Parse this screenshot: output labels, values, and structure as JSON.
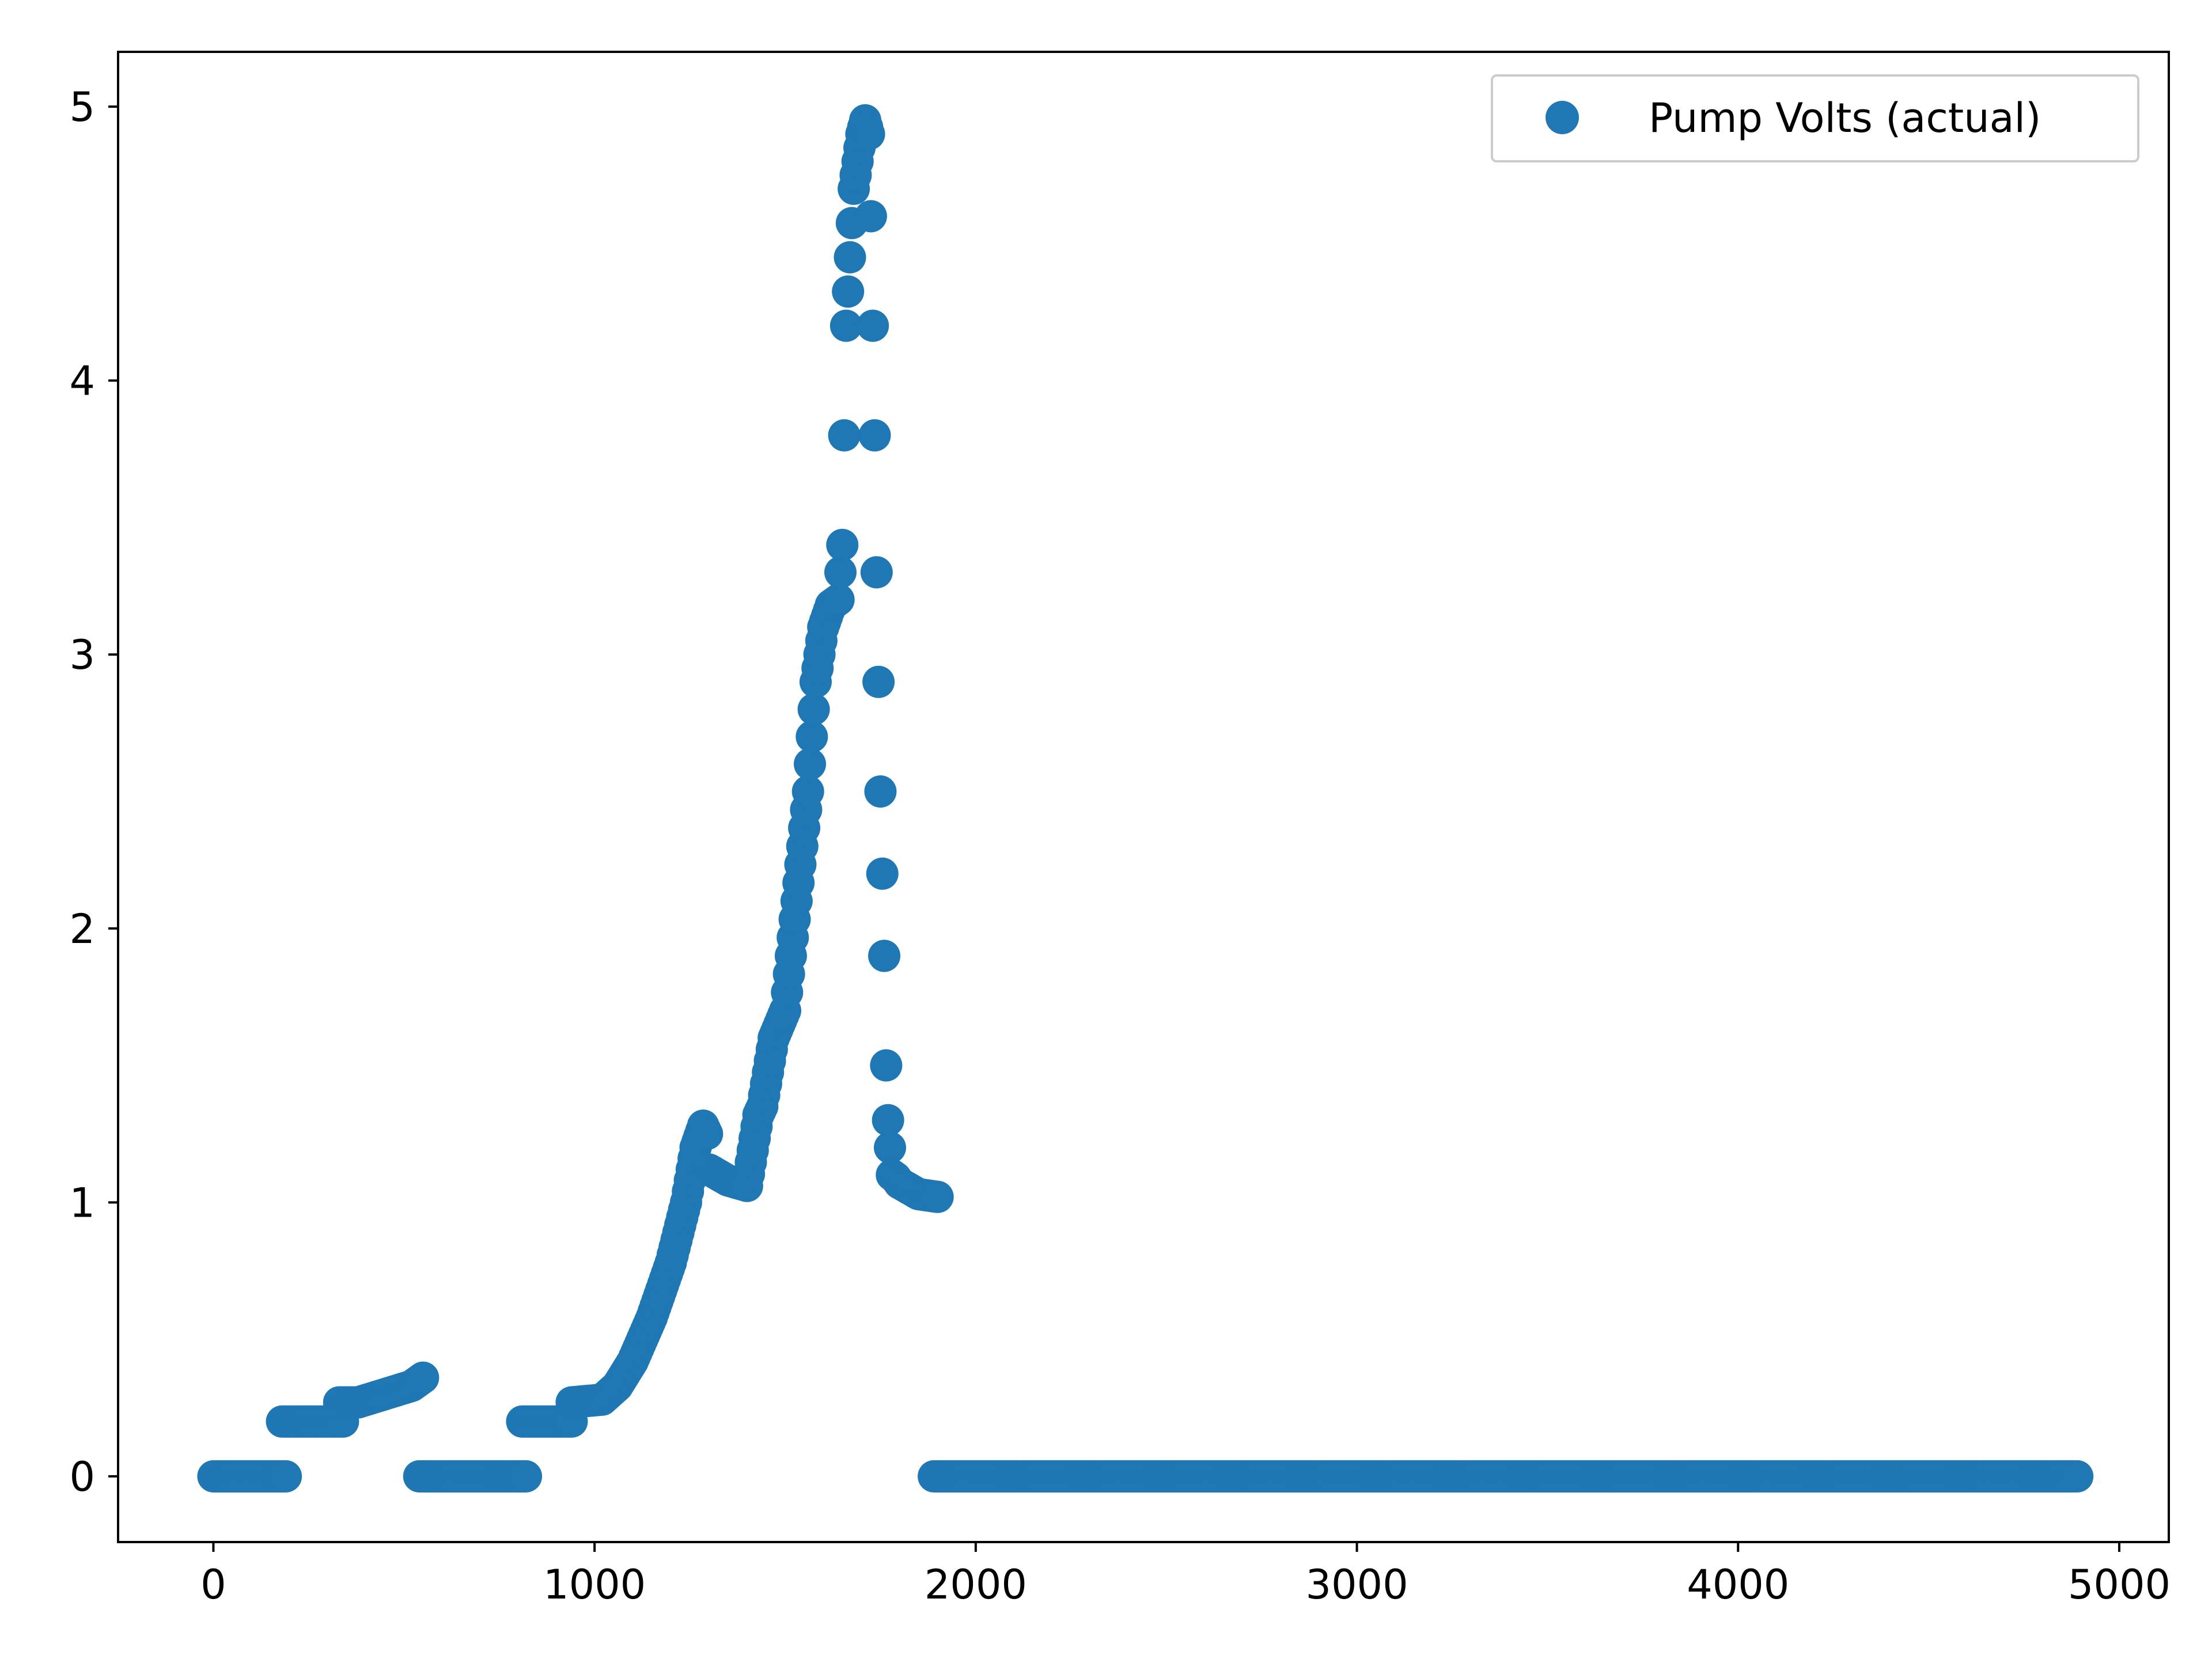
{
  "chart_data": {
    "type": "scatter",
    "title": "",
    "xlabel": "",
    "ylabel": "",
    "xlim": [
      -250,
      5130
    ],
    "ylim": [
      -0.24,
      5.2
    ],
    "xticks": [
      0,
      1000,
      2000,
      3000,
      4000,
      5000
    ],
    "xtick_labels": [
      "0",
      "1000",
      "2000",
      "3000",
      "4000",
      "5000"
    ],
    "yticks": [
      0,
      1,
      2,
      3,
      4,
      5
    ],
    "ytick_labels": [
      "0",
      "1",
      "2",
      "3",
      "4",
      "5"
    ],
    "grid": false,
    "legend_position": "upper right",
    "series": [
      {
        "name": "Pump Volts (actual)",
        "color": "#1f77b4",
        "marker": "circle",
        "segments": [
          {
            "x": [
              0,
              190
            ],
            "y": [
              0,
              0
            ]
          },
          {
            "x": [
              180,
              340
            ],
            "y": [
              0.2,
              0.2
            ]
          },
          {
            "x": [
              330,
              380,
              450,
              520,
              550
            ],
            "y": [
              0.27,
              0.27,
              0.3,
              0.33,
              0.36
            ]
          },
          {
            "x": [
              540,
              820
            ],
            "y": [
              0,
              0
            ]
          },
          {
            "x": [
              810,
              940
            ],
            "y": [
              0.2,
              0.2
            ]
          },
          {
            "x": [
              940,
              1020,
              1060,
              1100,
              1150,
              1200,
              1240,
              1265,
              1285,
              1295,
              1300,
              1350,
              1400,
              1430,
              1440,
              1470,
              1500,
              1530,
              1560,
              1580,
              1600,
              1620,
              1640,
              1650,
              1660,
              1680,
              1700,
              1710,
              1720,
              1725,
              1730,
              1735,
              1740,
              1745,
              1750,
              1755,
              1760,
              1765,
              1770,
              1780,
              1790,
              1800,
              1850,
              1900
            ],
            "y": [
              0.27,
              0.28,
              0.33,
              0.42,
              0.58,
              0.78,
              1.0,
              1.2,
              1.28,
              1.25,
              1.12,
              1.08,
              1.06,
              1.32,
              1.35,
              1.6,
              1.7,
              2.1,
              2.5,
              2.9,
              3.1,
              3.18,
              3.2,
              3.4,
              4.2,
              4.7,
              4.9,
              4.95,
              4.9,
              4.6,
              4.2,
              3.8,
              3.3,
              2.9,
              2.5,
              2.2,
              1.9,
              1.5,
              1.3,
              1.1,
              1.09,
              1.07,
              1.03,
              1.02
            ]
          },
          {
            "x": [
              1890,
              4890
            ],
            "y": [
              0,
              0
            ]
          }
        ]
      }
    ]
  }
}
